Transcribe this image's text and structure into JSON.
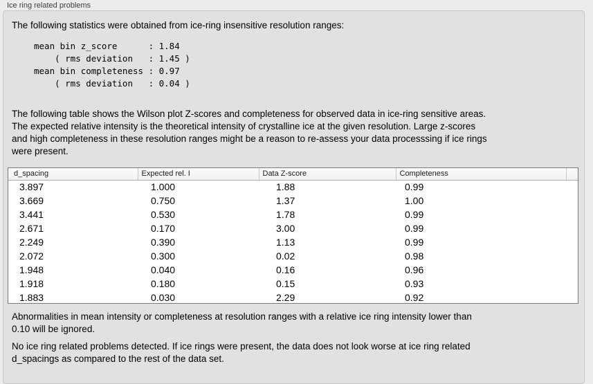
{
  "panel": {
    "title": "Ice ring related problems"
  },
  "texts": {
    "intro": "The following statistics were obtained from ice-ring insensitive resolution ranges:",
    "stats_lines": [
      "mean bin z_score      : 1.84",
      "    ( rms deviation   : 1.45 )",
      "mean bin completeness : 0.97",
      "    ( rms deviation   : 0.04 )"
    ],
    "desc_lines": [
      "The following table shows the Wilson plot Z-scores and completeness for observed data in ice-ring sensitive areas.",
      "The expected relative intensity is the theoretical intensity of crystalline ice at the given resolution. Large z-scores",
      "and high completeness in these resolution ranges might be a reason to re-assess your data processsing if ice rings",
      "were present."
    ],
    "note_lines": [
      "Abnormalities in mean intensity or completeness at resolution ranges with a relative ice ring intensity lower than",
      "0.10 will be ignored."
    ],
    "conclusion_lines": [
      "No ice ring related problems detected. If ice rings were present, the data does not look worse at ice ring related",
      "d_spacings as compared to the rest of the data set."
    ]
  },
  "stats": {
    "mean_bin_z_score": "1.84",
    "z_score_rms_deviation": "1.45",
    "mean_bin_completeness": "0.97",
    "completeness_rms_deviation": "0.04"
  },
  "table": {
    "columns": [
      "d_spacing",
      "Expected rel. I",
      "Data Z-score",
      "Completeness"
    ],
    "rows": [
      [
        "3.897",
        "1.000",
        "1.88",
        "0.99"
      ],
      [
        "3.669",
        "0.750",
        "1.37",
        "1.00"
      ],
      [
        "3.441",
        "0.530",
        "1.78",
        "0.99"
      ],
      [
        "2.671",
        "0.170",
        "3.00",
        "0.99"
      ],
      [
        "2.249",
        "0.390",
        "1.13",
        "0.99"
      ],
      [
        "2.072",
        "0.300",
        "0.02",
        "0.98"
      ],
      [
        "1.948",
        "0.040",
        "0.16",
        "0.96"
      ],
      [
        "1.918",
        "0.180",
        "0.15",
        "0.93"
      ],
      [
        "1.883",
        "0.030",
        "2.29",
        "0.92"
      ]
    ]
  },
  "colors": {
    "panel_background": "#ececec",
    "groupbox_background": "#e1e1e1",
    "table_border": "#7a7a7a",
    "table_background": "#ffffff"
  }
}
